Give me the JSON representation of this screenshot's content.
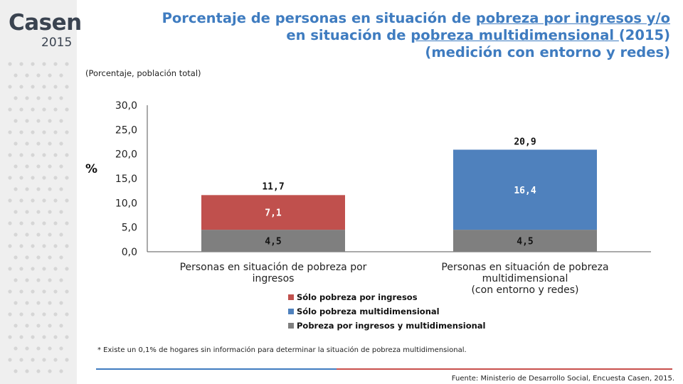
{
  "brand": {
    "name": "Casen",
    "year": "2015"
  },
  "title": {
    "line1_a": "Porcentaje de personas en situación de ",
    "line1_b": "pobreza por ingresos y/o",
    "line2_a": "en situación de ",
    "line2_b": "pobreza multidimensional ",
    "line2_c": "(2015)",
    "line3": "(medición con entorno y redes)"
  },
  "subtitle": "(Porcentaje, población total)",
  "colors": {
    "accent": "#3f7cc0",
    "red": "#c0504d",
    "blue": "#4f81bd",
    "gray": "#7f7f7f"
  },
  "chart_data": {
    "type": "bar",
    "stacked": true,
    "ylabel": "%",
    "ylim": [
      0,
      30
    ],
    "yticks": [
      "0,0",
      "5,0",
      "10,0",
      "15,0",
      "20,0",
      "25,0",
      "30,0"
    ],
    "grid": false,
    "legend_position": "bottom",
    "categories": [
      [
        "Personas en situación de pobreza por",
        "ingresos"
      ],
      [
        "Personas en situación de pobreza",
        "multidimensional",
        "(con entorno y redes)"
      ]
    ],
    "series": [
      {
        "name": "Pobreza por ingresos y multidimensional",
        "color": "#7f7f7f",
        "values": [
          4.5,
          4.5
        ],
        "labels": [
          "4,5",
          "4,5"
        ]
      },
      {
        "name": "Sólo pobreza por ingresos",
        "color": "#c0504d",
        "values": [
          7.1,
          0
        ],
        "labels": [
          "7,1",
          ""
        ]
      },
      {
        "name": "Sólo pobreza multidimensional",
        "color": "#4f81bd",
        "values": [
          0,
          16.4
        ],
        "labels": [
          "",
          "16,4"
        ]
      }
    ],
    "totals": [
      11.7,
      20.9
    ],
    "total_labels": [
      "11,7",
      "20,9"
    ],
    "legend_order": [
      "Sólo pobreza por ingresos",
      "Sólo pobreza multidimensional",
      "Pobreza por ingresos y multidimensional"
    ]
  },
  "footnote": "* Existe un 0,1% de hogares sin información para determinar la situación de pobreza multidimensional.",
  "source": "Fuente: Ministerio de Desarrollo Social, Encuesta Casen, 2015."
}
